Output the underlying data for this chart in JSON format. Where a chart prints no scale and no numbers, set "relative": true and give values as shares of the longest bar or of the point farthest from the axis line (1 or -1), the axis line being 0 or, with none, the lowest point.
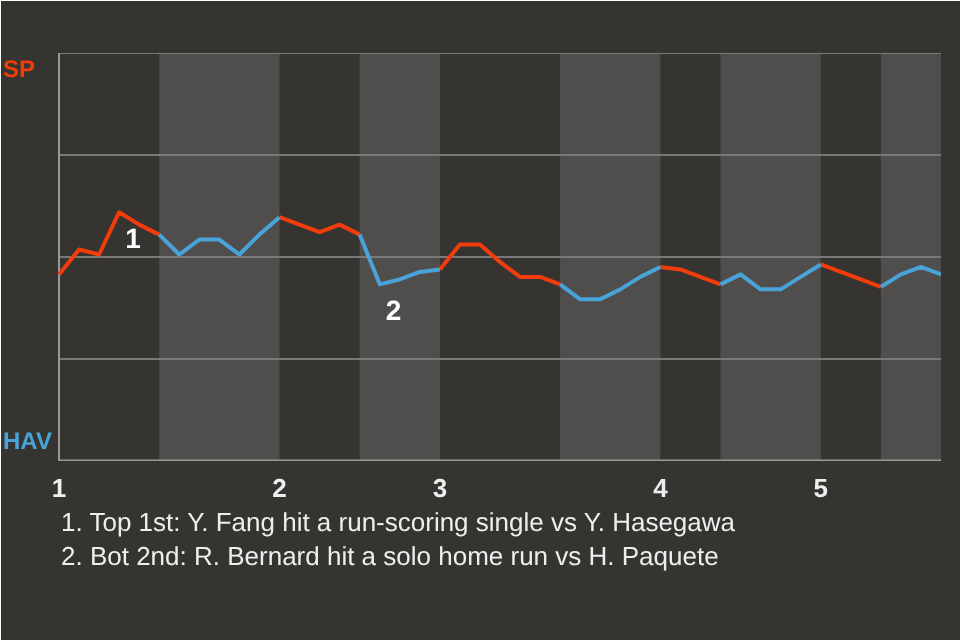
{
  "chart_data": {
    "type": "line",
    "relative": true,
    "categories": [
      "1",
      null,
      null,
      null,
      null,
      null,
      null,
      null,
      null,
      null,
      null,
      "2",
      null,
      null,
      null,
      null,
      null,
      null,
      null,
      "3",
      null,
      null,
      null,
      null,
      null,
      null,
      null,
      null,
      null,
      null,
      "4",
      null,
      null,
      null,
      null,
      null,
      null,
      null,
      "5",
      null,
      null,
      null,
      null,
      null,
      null
    ],
    "series": [
      {
        "name": "SP",
        "color": "#f23c0c",
        "values": [
          0.75,
          0.85,
          0.83,
          1.0,
          0.95,
          0.91,
          null,
          null,
          null,
          null,
          null,
          0.98,
          0.95,
          0.92,
          0.95,
          0.91,
          null,
          null,
          null,
          0.77,
          0.87,
          0.87,
          0.8,
          0.74,
          0.74,
          0.71,
          null,
          null,
          null,
          null,
          0.78,
          0.77,
          0.74,
          0.71,
          null,
          null,
          null,
          null,
          0.79,
          0.76,
          0.73,
          0.7,
          null,
          null,
          null
        ]
      },
      {
        "name": "HAV",
        "color": "#4aa3d8",
        "values": [
          null,
          null,
          null,
          null,
          null,
          0.91,
          0.83,
          0.89,
          0.89,
          0.83,
          0.91,
          0.98,
          null,
          null,
          null,
          0.91,
          0.71,
          0.73,
          0.76,
          0.77,
          null,
          null,
          null,
          null,
          null,
          0.71,
          0.65,
          0.65,
          0.69,
          0.74,
          0.78,
          null,
          null,
          0.71,
          0.75,
          0.69,
          0.69,
          0.74,
          0.79,
          null,
          null,
          0.7,
          0.75,
          0.78,
          0.75
        ]
      }
    ],
    "ref_lines": [
      {
        "axis": "y",
        "value": 0.41,
        "color": "#7a7977"
      },
      {
        "axis": "y",
        "value": 0.82,
        "color": "#7a7977"
      },
      {
        "axis": "y",
        "value": 1.23,
        "color": "#7a7977"
      },
      {
        "axis": "y",
        "value": 1.64,
        "color": "#7a7977"
      }
    ],
    "legend": false,
    "line_style": "solid",
    "marker": "none",
    "annotations": [
      {
        "text": "1",
        "y": 1.0
      },
      {
        "text": "2",
        "y": 0.71
      },
      "1. Top 1st: Y. Fang hit a run-scoring single vs Y. Hasegawa",
      "2. Bot 2nd: R. Bernard hit a solo home run vs H. Paquete"
    ]
  }
}
